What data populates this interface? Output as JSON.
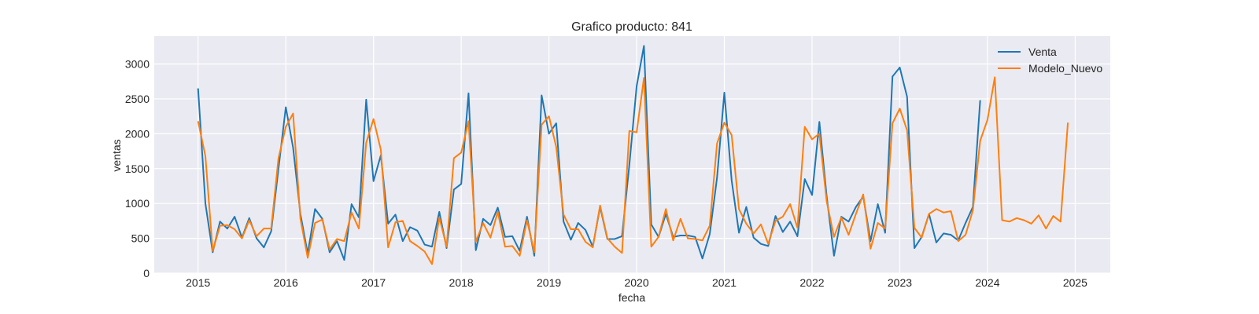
{
  "chart_data": {
    "type": "line",
    "title": "Grafico producto: 841",
    "xlabel": "fecha",
    "ylabel": "ventas",
    "xlim": [
      2014.5,
      2025.4
    ],
    "ylim": [
      0,
      3400
    ],
    "xticks": [
      2015,
      2016,
      2017,
      2018,
      2019,
      2020,
      2021,
      2022,
      2023,
      2024,
      2025
    ],
    "yticks": [
      0,
      500,
      1000,
      1500,
      2000,
      2500,
      3000
    ],
    "grid": true,
    "legend_position": "top-right",
    "plot_background": "#EAEAF2",
    "series": [
      {
        "name": "Venta",
        "color": "#1f77b4",
        "start": "2015-01",
        "frequency": "monthly",
        "values": [
          2650,
          1000,
          300,
          740,
          640,
          810,
          510,
          790,
          500,
          370,
          600,
          1500,
          2380,
          1800,
          850,
          280,
          920,
          780,
          300,
          460,
          190,
          990,
          800,
          2490,
          1320,
          1690,
          710,
          840,
          460,
          660,
          610,
          410,
          380,
          880,
          360,
          1200,
          1280,
          2580,
          330,
          780,
          690,
          940,
          520,
          530,
          320,
          810,
          250,
          2550,
          2000,
          2150,
          740,
          480,
          720,
          620,
          380,
          950,
          490,
          490,
          530,
          1550,
          2680,
          3260,
          700,
          520,
          850,
          520,
          540,
          540,
          520,
          210,
          560,
          1370,
          2590,
          1330,
          580,
          950,
          510,
          420,
          390,
          820,
          590,
          740,
          530,
          1350,
          1120,
          2170,
          1100,
          250,
          810,
          740,
          950,
          1100,
          460,
          990,
          580,
          2820,
          2950,
          2530,
          360,
          520,
          850,
          440,
          570,
          550,
          470,
          720,
          950,
          2480
        ]
      },
      {
        "name": "Modelo_Nuevo",
        "color": "#ff7f0e",
        "start": "2015-01",
        "frequency": "monthly",
        "values": [
          2180,
          1680,
          320,
          680,
          690,
          630,
          500,
          760,
          530,
          640,
          640,
          1650,
          2100,
          2290,
          780,
          220,
          720,
          770,
          340,
          490,
          460,
          870,
          640,
          1870,
          2210,
          1770,
          370,
          730,
          750,
          460,
          390,
          310,
          130,
          800,
          380,
          1650,
          1730,
          2180,
          450,
          720,
          510,
          880,
          380,
          390,
          250,
          760,
          300,
          2130,
          2250,
          1810,
          840,
          630,
          630,
          450,
          370,
          970,
          500,
          380,
          290,
          2040,
          2020,
          2800,
          380,
          520,
          920,
          470,
          780,
          500,
          490,
          470,
          680,
          1860,
          2160,
          1980,
          920,
          710,
          570,
          700,
          420,
          750,
          810,
          990,
          650,
          2100,
          1920,
          2000,
          1030,
          520,
          800,
          550,
          850,
          1130,
          350,
          720,
          640,
          2150,
          2360,
          2050,
          650,
          510,
          850,
          920,
          870,
          890,
          460,
          550,
          900,
          1900,
          2200,
          2810,
          760,
          740,
          790,
          760,
          710,
          830,
          640,
          820,
          740,
          2160
        ]
      }
    ]
  }
}
